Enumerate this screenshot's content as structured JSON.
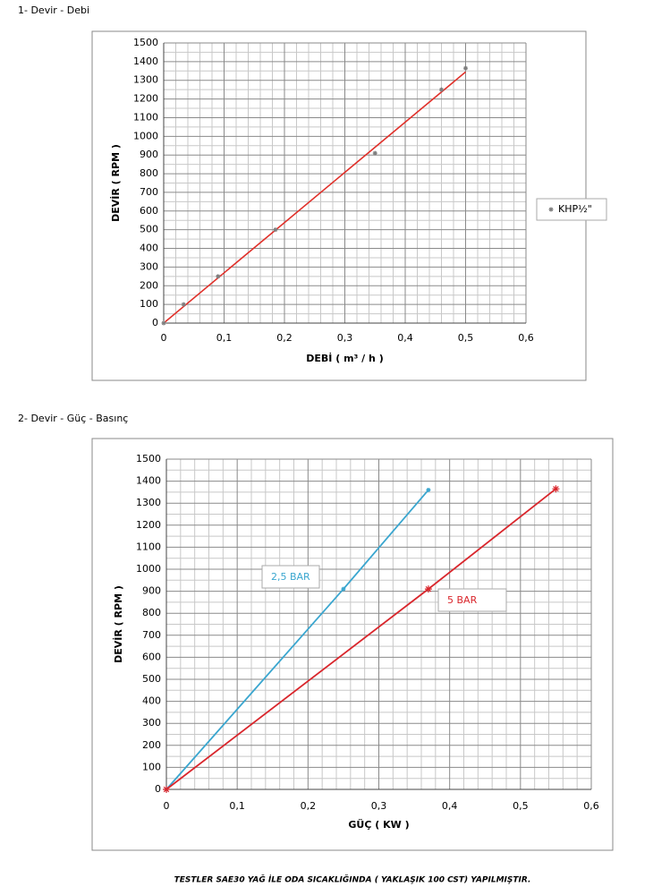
{
  "headings": [
    "1- Devir - Debi",
    "2- Devir - Güç - Basınç"
  ],
  "footer": "TESTLER SAE30 YAĞ İLE ODA SICAKLIĞINDA ( YAKLAŞIK 100 CST) YAPILMIŞTIR.",
  "chart_data": [
    {
      "type": "scatter",
      "x_label": "DEBİ ( m³ / h )",
      "y_label": "DEVİR ( RPM )",
      "series": [
        {
          "name": "KHP½\"",
          "color": "#7f7f7f",
          "x": [
            0,
            0.033,
            0.09,
            0.185,
            0.35,
            0.46,
            0.5
          ],
          "values": [
            0,
            100,
            250,
            500,
            910,
            1250,
            1365
          ]
        }
      ],
      "trendline": {
        "color": "#e0302a",
        "x": [
          0,
          0.5
        ],
        "values": [
          0,
          1345
        ]
      },
      "xlim": [
        0,
        0.6
      ],
      "xticks": [
        0,
        {
          "value": 0.1,
          "label": "0,1"
        },
        {
          "value": 0.2,
          "label": "0,2"
        },
        {
          "value": 0.3,
          "label": "0,3"
        },
        {
          "value": 0.4,
          "label": "0,4"
        },
        {
          "value": 0.5,
          "label": "0,5"
        },
        {
          "value": 0.6,
          "label": "0,6"
        }
      ],
      "ylim": [
        0,
        1500
      ],
      "yticks": [
        0,
        100,
        200,
        300,
        400,
        500,
        600,
        700,
        800,
        900,
        1000,
        1100,
        1200,
        1300,
        1400,
        1500
      ],
      "grid": true,
      "minor_grid": true,
      "legend": "right"
    },
    {
      "type": "line",
      "x_label": "GÜÇ ( KW )",
      "y_label": "DEVİR ( RPM )",
      "series": [
        {
          "name": "2,5 BAR",
          "color": "#3aa6cf",
          "x": [
            0,
            0.25,
            0.37
          ],
          "values": [
            0,
            910,
            1360
          ]
        },
        {
          "name": "5 BAR",
          "color": "#d9262c",
          "x": [
            0,
            0.37,
            0.55
          ],
          "values": [
            0,
            910,
            1365
          ]
        }
      ],
      "xlim": [
        0,
        0.6
      ],
      "xticks": [
        0,
        {
          "value": 0.1,
          "label": "0,1"
        },
        {
          "value": 0.2,
          "label": "0,2"
        },
        {
          "value": 0.3,
          "label": "0,3"
        },
        {
          "value": 0.4,
          "label": "0,4"
        },
        {
          "value": 0.5,
          "label": "0,5"
        },
        {
          "value": 0.6,
          "label": "0,6"
        }
      ],
      "ylim": [
        0,
        1500
      ],
      "yticks": [
        0,
        100,
        200,
        300,
        400,
        500,
        600,
        700,
        800,
        900,
        1000,
        1100,
        1200,
        1300,
        1400,
        1500
      ],
      "grid": true,
      "minor_grid": true,
      "legend": "inline"
    }
  ]
}
